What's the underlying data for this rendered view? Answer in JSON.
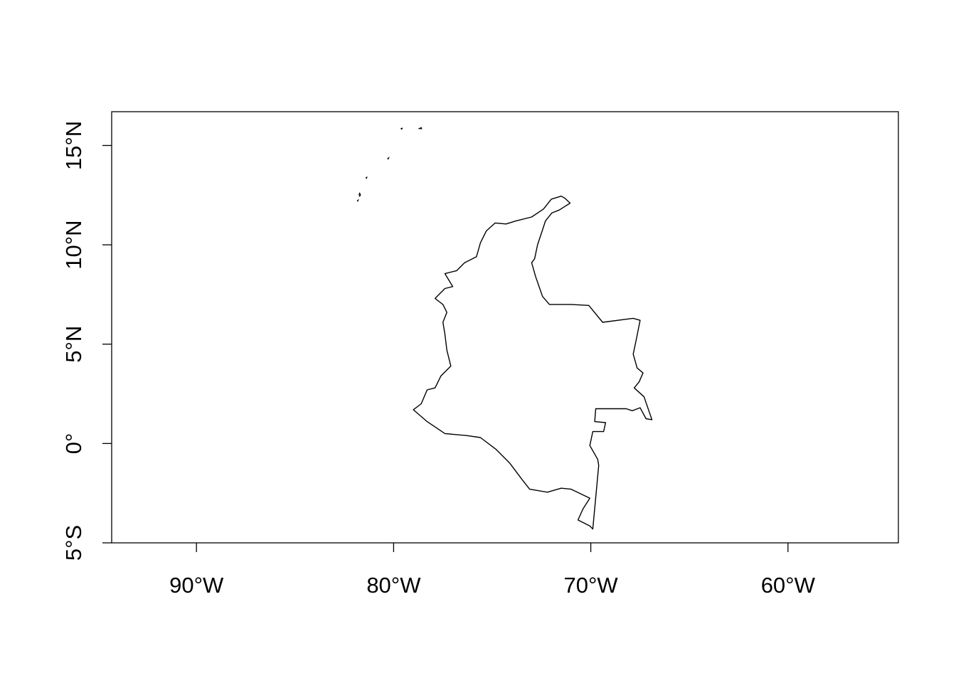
{
  "map": {
    "region": "Colombia",
    "projection": "longitude/latitude",
    "lon_range": [
      -94.3,
      -54.4
    ],
    "lat_range": [
      -5,
      16.7
    ],
    "x_ticks": [
      {
        "value": -90,
        "label": "90°W"
      },
      {
        "value": -80,
        "label": "80°W"
      },
      {
        "value": -70,
        "label": "70°W"
      },
      {
        "value": -60,
        "label": "60°W"
      }
    ],
    "y_ticks": [
      {
        "value": -5,
        "label": "5°S"
      },
      {
        "value": 0,
        "label": "0°"
      },
      {
        "value": 5,
        "label": "5°N"
      },
      {
        "value": 10,
        "label": "10°N"
      },
      {
        "value": 15,
        "label": "15°N"
      }
    ],
    "outline_color": "#000000",
    "mainland_outline": [
      [
        -71.32,
        12.35
      ],
      [
        -71.05,
        12.1
      ],
      [
        -71.6,
        11.75
      ],
      [
        -71.98,
        11.6
      ],
      [
        -72.3,
        11.2
      ],
      [
        -72.5,
        10.6
      ],
      [
        -72.7,
        10.0
      ],
      [
        -72.85,
        9.3
      ],
      [
        -73.0,
        9.1
      ],
      [
        -72.8,
        8.4
      ],
      [
        -72.45,
        7.4
      ],
      [
        -72.1,
        7.0
      ],
      [
        -71.0,
        7.0
      ],
      [
        -70.1,
        6.95
      ],
      [
        -69.4,
        6.1
      ],
      [
        -67.85,
        6.3
      ],
      [
        -67.5,
        6.2
      ],
      [
        -67.7,
        5.2
      ],
      [
        -67.85,
        4.5
      ],
      [
        -67.65,
        3.8
      ],
      [
        -67.35,
        3.55
      ],
      [
        -67.55,
        3.1
      ],
      [
        -67.8,
        2.8
      ],
      [
        -67.3,
        2.35
      ],
      [
        -66.9,
        1.2
      ],
      [
        -67.2,
        1.25
      ],
      [
        -67.5,
        1.8
      ],
      [
        -67.9,
        1.65
      ],
      [
        -68.2,
        1.75
      ],
      [
        -69.75,
        1.75
      ],
      [
        -69.8,
        1.1
      ],
      [
        -69.25,
        1.05
      ],
      [
        -69.35,
        0.6
      ],
      [
        -69.9,
        0.6
      ],
      [
        -70.05,
        -0.1
      ],
      [
        -69.65,
        -0.8
      ],
      [
        -69.6,
        -1.1
      ],
      [
        -69.9,
        -4.3
      ],
      [
        -70.05,
        -4.15
      ],
      [
        -70.65,
        -3.85
      ],
      [
        -70.4,
        -3.3
      ],
      [
        -70.05,
        -2.75
      ],
      [
        -71.0,
        -2.3
      ],
      [
        -71.5,
        -2.25
      ],
      [
        -72.2,
        -2.45
      ],
      [
        -73.1,
        -2.3
      ],
      [
        -73.5,
        -1.8
      ],
      [
        -74.1,
        -1.0
      ],
      [
        -74.8,
        -0.3
      ],
      [
        -75.6,
        0.3
      ],
      [
        -76.3,
        0.4
      ],
      [
        -77.4,
        0.5
      ],
      [
        -78.3,
        1.1
      ],
      [
        -79.0,
        1.7
      ],
      [
        -78.6,
        2.0
      ],
      [
        -78.3,
        2.7
      ],
      [
        -77.9,
        2.8
      ],
      [
        -77.6,
        3.4
      ],
      [
        -77.1,
        3.9
      ],
      [
        -77.3,
        4.7
      ],
      [
        -77.4,
        5.5
      ],
      [
        -77.5,
        6.1
      ],
      [
        -77.3,
        6.6
      ],
      [
        -77.5,
        7.0
      ],
      [
        -77.9,
        7.3
      ],
      [
        -77.4,
        7.8
      ],
      [
        -77.0,
        7.9
      ],
      [
        -77.4,
        8.55
      ],
      [
        -76.8,
        8.7
      ],
      [
        -76.4,
        9.1
      ],
      [
        -75.8,
        9.4
      ],
      [
        -75.6,
        10.1
      ],
      [
        -75.3,
        10.7
      ],
      [
        -74.85,
        11.1
      ],
      [
        -74.3,
        11.05
      ],
      [
        -73.8,
        11.2
      ],
      [
        -73.0,
        11.4
      ],
      [
        -72.4,
        11.8
      ],
      [
        -72.0,
        12.3
      ],
      [
        -71.5,
        12.45
      ],
      [
        -71.32,
        12.35
      ]
    ],
    "islands": [
      [
        [
          -81.72,
          12.6
        ],
        [
          -81.68,
          12.5
        ],
        [
          -81.73,
          12.45
        ],
        [
          -81.75,
          12.55
        ],
        [
          -81.72,
          12.6
        ]
      ],
      [
        [
          -81.38,
          13.35
        ],
        [
          -81.36,
          13.4
        ],
        [
          -81.4,
          13.38
        ],
        [
          -81.38,
          13.35
        ]
      ],
      [
        [
          -79.62,
          15.85
        ],
        [
          -79.55,
          15.88
        ],
        [
          -79.6,
          15.82
        ],
        [
          -79.62,
          15.85
        ]
      ],
      [
        [
          -78.7,
          15.85
        ],
        [
          -78.6,
          15.9
        ],
        [
          -78.58,
          15.84
        ],
        [
          -78.7,
          15.85
        ]
      ],
      [
        [
          -80.3,
          14.35
        ],
        [
          -80.25,
          14.38
        ],
        [
          -80.28,
          14.32
        ],
        [
          -80.3,
          14.35
        ]
      ],
      [
        [
          -81.82,
          12.2
        ],
        [
          -81.8,
          12.25
        ],
        [
          -81.84,
          12.22
        ],
        [
          -81.82,
          12.2
        ]
      ]
    ]
  }
}
